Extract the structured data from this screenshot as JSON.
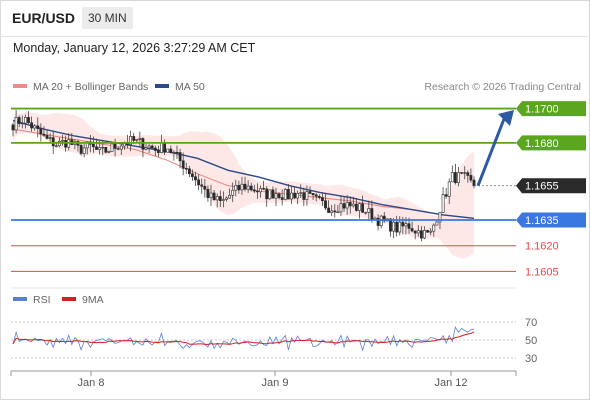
{
  "header": {
    "symbol": "EUR/USD",
    "timeframe": "30 MIN",
    "timestamp": "Monday, January 12, 2026 3:27:29 AM CET"
  },
  "legend": {
    "ma20": {
      "label": "MA 20 + Bollinger Bands",
      "color": "#f08a8a"
    },
    "ma50": {
      "label": "MA 50",
      "color": "#2d4a8a"
    },
    "credit": "Research © 2026 Trading Central"
  },
  "rsi_legend": {
    "rsi": {
      "label": "RSI",
      "color": "#5b7fd6"
    },
    "ma9": {
      "label": "9MA",
      "color": "#d42020"
    }
  },
  "colors": {
    "support": "#3a78e0",
    "resistance": "#5aa61e",
    "level": "#e24848",
    "price": "#2a2a2a",
    "arrow": "#2d5aa0"
  },
  "chart_data": [
    {
      "type": "candlestick",
      "ylim": [
        1.16,
        1.1705
      ],
      "x_ticks": [
        "Jan 8",
        "Jan 9",
        "Jan 12"
      ],
      "levels": [
        {
          "value": 1.17,
          "label": "1.1700",
          "kind": "resistance"
        },
        {
          "value": 1.168,
          "label": "1.1680",
          "kind": "resistance"
        },
        {
          "value": 1.1655,
          "label": "1.1655",
          "kind": "current"
        },
        {
          "value": 1.1635,
          "label": "1.1635",
          "kind": "support"
        },
        {
          "value": 1.162,
          "label": "1.1620",
          "kind": "level"
        },
        {
          "value": 1.1605,
          "label": "1.1605",
          "kind": "level"
        }
      ],
      "path_targets": [
        1.1691,
        1.1694,
        1.1688,
        1.1682,
        1.1679,
        1.1681,
        1.1676,
        1.1678,
        1.1674,
        1.1677,
        1.168,
        1.1681,
        1.1679,
        1.1676,
        1.1678,
        1.1671,
        1.1664,
        1.1656,
        1.1648,
        1.1645,
        1.1651,
        1.1655,
        1.1653,
        1.165,
        1.1651,
        1.1649,
        1.1651,
        1.1648,
        1.1645,
        1.1642,
        1.1644,
        1.1643,
        1.1641,
        1.1636,
        1.1633,
        1.163,
        1.1632,
        1.1628,
        1.1626,
        1.1644,
        1.166,
        1.166,
        1.1655
      ],
      "series": [
        {
          "name": "MA 50",
          "values": [
            1.1693,
            1.1688,
            1.1684,
            1.1681,
            1.1678,
            1.1675,
            1.1671,
            1.1664,
            1.166,
            1.1655,
            1.1651,
            1.1648,
            1.1644,
            1.1641,
            1.1638,
            1.1636
          ]
        },
        {
          "name": "MA 20",
          "values": [
            1.1688,
            1.1685,
            1.1682,
            1.1679,
            1.1676,
            1.167,
            1.1662,
            1.1655,
            1.1652,
            1.165,
            1.1648,
            1.1646,
            1.1643,
            1.1641,
            1.1638,
            1.1636
          ]
        }
      ]
    },
    {
      "type": "line",
      "y_ticks": [
        70,
        50,
        30
      ],
      "series": [
        {
          "name": "RSI"
        },
        {
          "name": "9MA"
        }
      ]
    }
  ]
}
